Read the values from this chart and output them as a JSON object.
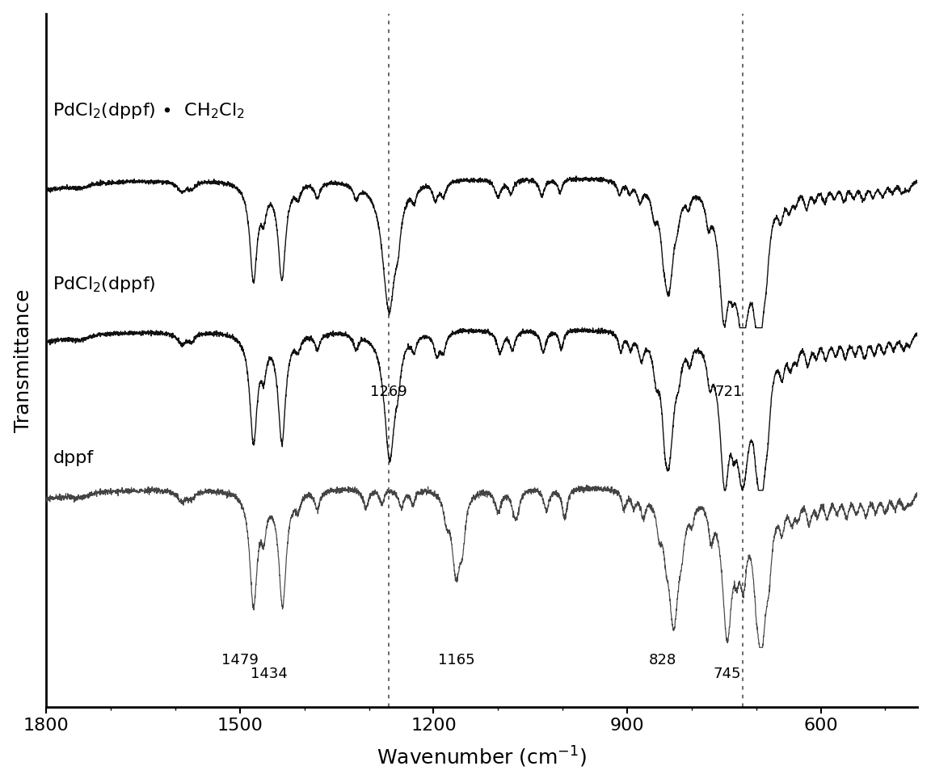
{
  "xlabel": "Wavenumber (cm$^{-1}$)",
  "ylabel": "Transmittance",
  "xlim": [
    1800,
    450
  ],
  "background_color": "#ffffff",
  "dotted_lines": [
    1269,
    721
  ],
  "label_top": "PdCl$_2$(dppf) $\\bullet$  CH$_2$Cl$_2$",
  "label_middle": "PdCl$_2$(dppf)",
  "label_bottom": "dppf",
  "annot_dppf": [
    {
      "x": 1479,
      "label": "1479",
      "xoff": -20,
      "yoff": -0.055
    },
    {
      "x": 1434,
      "label": "1434",
      "xoff": -10,
      "yoff": -0.075
    },
    {
      "x": 1165,
      "label": "1165",
      "xoff": 0,
      "yoff": -0.055
    },
    {
      "x": 828,
      "label": "828",
      "xoff": 20,
      "yoff": -0.045
    },
    {
      "x": 745,
      "label": "745",
      "xoff": 10,
      "yoff": -0.075
    }
  ],
  "annot_vline": [
    {
      "x": 1269,
      "label": "1269"
    },
    {
      "x": 721,
      "label": "721"
    }
  ]
}
